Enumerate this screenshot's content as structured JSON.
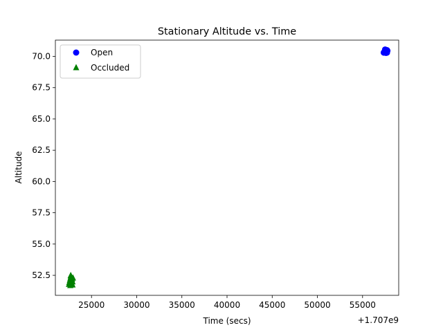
{
  "chart_data": {
    "type": "scatter",
    "title": "Stationary Altitude vs. Time",
    "xlabel": "Time (secs)",
    "ylabel": "Altitude",
    "x_offset_label": "+1.707e9",
    "xlim": [
      21000,
      59000
    ],
    "ylim": [
      50.9,
      71.3
    ],
    "xticks": [
      25000,
      30000,
      35000,
      40000,
      45000,
      50000,
      55000
    ],
    "xtick_labels": [
      "25000",
      "30000",
      "35000",
      "40000",
      "45000",
      "50000",
      "55000"
    ],
    "yticks": [
      52.5,
      55.0,
      57.5,
      60.0,
      62.5,
      65.0,
      67.5,
      70.0
    ],
    "ytick_labels": [
      "52.5",
      "55.0",
      "57.5",
      "60.0",
      "62.5",
      "65.0",
      "67.5",
      "70.0"
    ],
    "grid": false,
    "legend_position": "top-left",
    "series": [
      {
        "name": "Open",
        "marker": "circle",
        "color": "#0000ff",
        "points": [
          [
            57350,
            70.3
          ],
          [
            57400,
            70.35
          ],
          [
            57450,
            70.4
          ],
          [
            57500,
            70.45
          ],
          [
            57550,
            70.5
          ],
          [
            57600,
            70.35
          ],
          [
            57650,
            70.4
          ],
          [
            57700,
            70.3
          ],
          [
            57750,
            70.45
          ],
          [
            57500,
            70.55
          ],
          [
            57600,
            70.28
          ],
          [
            57450,
            70.32
          ],
          [
            57700,
            70.5
          ]
        ]
      },
      {
        "name": "Occluded",
        "marker": "triangle",
        "color": "#008000",
        "points": [
          [
            22500,
            51.8
          ],
          [
            22550,
            51.95
          ],
          [
            22600,
            52.1
          ],
          [
            22650,
            52.25
          ],
          [
            22700,
            52.4
          ],
          [
            22750,
            52.05
          ],
          [
            22800,
            51.9
          ],
          [
            22850,
            52.2
          ],
          [
            22900,
            51.75
          ],
          [
            22950,
            52.3
          ],
          [
            22600,
            51.85
          ],
          [
            22700,
            52.5
          ],
          [
            22800,
            52.15
          ],
          [
            22900,
            52.0
          ],
          [
            22650,
            51.7
          ]
        ]
      }
    ]
  }
}
